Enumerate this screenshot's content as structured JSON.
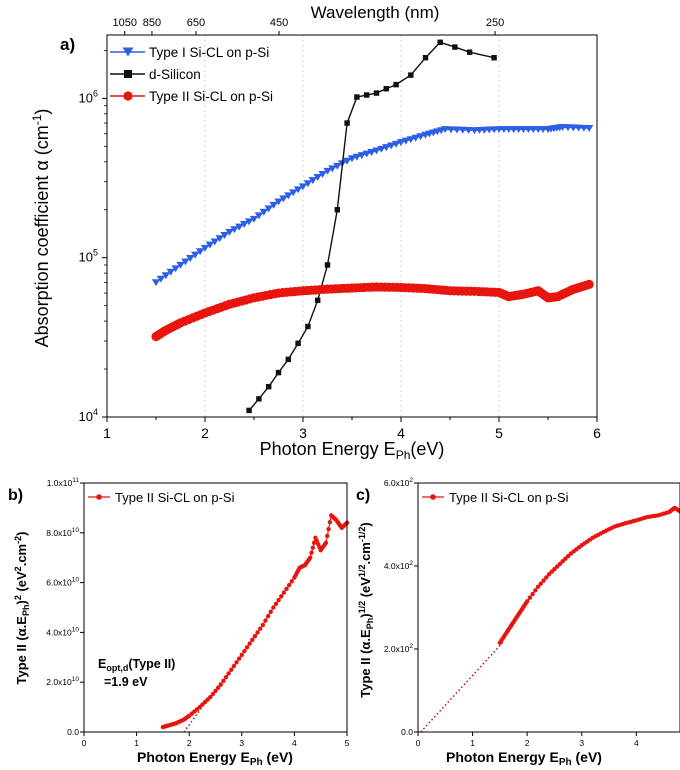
{
  "chart_data": [
    {
      "panel": "a)",
      "type": "scatter",
      "xlabel": "Photon Energy E",
      "xlabel_sub": "Ph",
      "xlabel_tail": "(eV)",
      "ylabel_main": "Absorption coefficient α (cm",
      "ylabel_sup": "-1",
      "ylabel_tail": ")",
      "top_axis_label": "Wavelength (nm)",
      "top_ticks": [
        "1050",
        "850",
        "650",
        "450",
        "250"
      ],
      "top_tick_nm": [
        1050,
        850,
        650,
        450,
        250
      ],
      "xlim": [
        1,
        6
      ],
      "ylim": [
        10000,
        2500000
      ],
      "yscale": "log",
      "xticks": [
        "1",
        "2",
        "3",
        "4",
        "5",
        "6"
      ],
      "yticks": [
        {
          "base": "10",
          "exp": "4",
          "v": 10000
        },
        {
          "base": "10",
          "exp": "5",
          "v": 100000
        },
        {
          "base": "10",
          "exp": "6",
          "v": 1000000
        }
      ],
      "grid": "vertical dotted",
      "legend_position": "top-left",
      "series": [
        {
          "name": "Type I Si-CL on p-Si",
          "color": "#2c5fe6",
          "marker": "triangle-down",
          "x": [
            1.5,
            1.75,
            2.0,
            2.25,
            2.5,
            2.75,
            3.0,
            3.25,
            3.5,
            3.75,
            4.0,
            4.25,
            4.45,
            4.75,
            5.0,
            5.25,
            5.5,
            5.65,
            5.92
          ],
          "y": [
            70000,
            90000,
            115000,
            145000,
            175000,
            225000,
            280000,
            350000,
            420000,
            470000,
            530000,
            590000,
            640000,
            630000,
            640000,
            640000,
            640000,
            660000,
            650000
          ]
        },
        {
          "name": "d-Silicon",
          "color": "#111111",
          "marker": "square",
          "x": [
            2.45,
            2.55,
            2.65,
            2.75,
            2.85,
            2.95,
            3.05,
            3.15,
            3.25,
            3.35,
            3.45,
            3.55,
            3.65,
            3.75,
            3.85,
            3.95,
            4.1,
            4.25,
            4.4,
            4.55,
            4.7,
            4.95
          ],
          "y": [
            11000,
            13000,
            15500,
            19000,
            23000,
            29000,
            37000,
            54000,
            90000,
            200000,
            700000,
            1020000,
            1050000,
            1080000,
            1150000,
            1220000,
            1400000,
            1800000,
            2250000,
            2100000,
            1950000,
            1800000
          ]
        },
        {
          "name": "Type II Si-CL on p-Si",
          "color": "#e8150e",
          "marker": "circle",
          "x": [
            1.5,
            1.6,
            1.75,
            2.0,
            2.25,
            2.5,
            2.75,
            3.0,
            3.25,
            3.5,
            3.75,
            4.0,
            4.25,
            4.5,
            4.75,
            5.0,
            5.1,
            5.25,
            5.4,
            5.5,
            5.6,
            5.75,
            5.92
          ],
          "y": [
            32000,
            35000,
            39000,
            45000,
            51000,
            56000,
            60000,
            62000,
            63500,
            64500,
            65500,
            65000,
            64000,
            62000,
            61500,
            60500,
            57000,
            59000,
            62000,
            56000,
            57000,
            63000,
            68000
          ]
        }
      ]
    },
    {
      "panel": "b)",
      "type": "scatter",
      "xlabel": "Photon Energy E",
      "xlabel_sub": "Ph",
      "xlabel_tail": " (eV)",
      "ylabel_parts": [
        "Type II (α.E",
        "Ph",
        ")",
        "2",
        " (eV",
        "2",
        ".cm",
        "-2",
        ")"
      ],
      "xlim": [
        0,
        5
      ],
      "ylim": [
        0,
        100000000000
      ],
      "xticks": [
        "0",
        "1",
        "2",
        "3",
        "4",
        "5"
      ],
      "yticks": [
        {
          "mant": "0.0",
          "exp": "",
          "v": 0
        },
        {
          "mant": "2.0x10",
          "exp": "10",
          "v": 20000000000
        },
        {
          "mant": "4.0x10",
          "exp": "10",
          "v": 40000000000
        },
        {
          "mant": "6.0x10",
          "exp": "10",
          "v": 60000000000
        },
        {
          "mant": "8.0x10",
          "exp": "10",
          "v": 80000000000
        },
        {
          "mant": "1.0x10",
          "exp": "11",
          "v": 100000000000
        }
      ],
      "legend_position": "top-left",
      "annotation_parts": [
        "E",
        "opt,d",
        "(Type II)",
        "=1.9 eV"
      ],
      "fit_line": {
        "x": [
          1.9,
          2.7
        ],
        "y": [
          0,
          23000000000
        ],
        "color": "#c40000",
        "style": "dotted"
      },
      "series": [
        {
          "name": "Type II Si-CL on p-Si",
          "color": "#e8150e",
          "marker": "circle",
          "x": [
            1.5,
            1.6,
            1.75,
            1.9,
            2.0,
            2.2,
            2.4,
            2.6,
            2.8,
            3.0,
            3.2,
            3.4,
            3.6,
            3.8,
            4.0,
            4.1,
            4.2,
            4.3,
            4.4,
            4.5,
            4.6,
            4.7,
            4.8,
            4.9,
            5.0
          ],
          "y": [
            2000000000,
            2600000000,
            3500000000,
            5000000000,
            6500000000,
            10000000000,
            14000000000,
            19000000000,
            25000000000,
            31000000000,
            37000000000,
            43000000000,
            50000000000,
            56000000000,
            62000000000,
            66000000000,
            67000000000,
            70000000000,
            78000000000,
            73000000000,
            76000000000,
            87000000000,
            85000000000,
            82000000000,
            84000000000
          ]
        }
      ]
    },
    {
      "panel": "c)",
      "type": "scatter",
      "xlabel": "Photon Energy E",
      "xlabel_sub": "Ph",
      "xlabel_tail": " (eV)",
      "ylabel_parts": [
        "Type II (α.E",
        "Ph",
        ")",
        "1/2",
        " (eV",
        "1/2",
        ".cm",
        "-1/2",
        ")"
      ],
      "xlim": [
        0,
        4.8
      ],
      "ylim": [
        0,
        600
      ],
      "xticks": [
        "0",
        "1",
        "2",
        "3",
        "4"
      ],
      "yticks": [
        {
          "mant": "0.0",
          "exp": "",
          "v": 0
        },
        {
          "mant": "2.0x10",
          "exp": "2",
          "v": 200
        },
        {
          "mant": "4.0x10",
          "exp": "2",
          "v": 400
        },
        {
          "mant": "6.0x10",
          "exp": "2",
          "v": 600
        }
      ],
      "legend_position": "top-left",
      "fit_line": {
        "x": [
          0.05,
          1.55
        ],
        "y": [
          0,
          215
        ],
        "color": "#c40000",
        "style": "dotted"
      },
      "series": [
        {
          "name": "Type II Si-CL on p-Si",
          "color": "#e8150e",
          "marker": "circle",
          "x": [
            1.5,
            1.6,
            1.7,
            1.8,
            1.9,
            2.0,
            2.2,
            2.4,
            2.6,
            2.8,
            3.0,
            3.2,
            3.4,
            3.6,
            3.8,
            4.0,
            4.2,
            4.4,
            4.6,
            4.7,
            4.8
          ],
          "y": [
            215,
            235,
            255,
            275,
            295,
            315,
            350,
            380,
            405,
            430,
            450,
            468,
            482,
            495,
            503,
            510,
            518,
            522,
            530,
            540,
            532
          ]
        }
      ]
    }
  ]
}
